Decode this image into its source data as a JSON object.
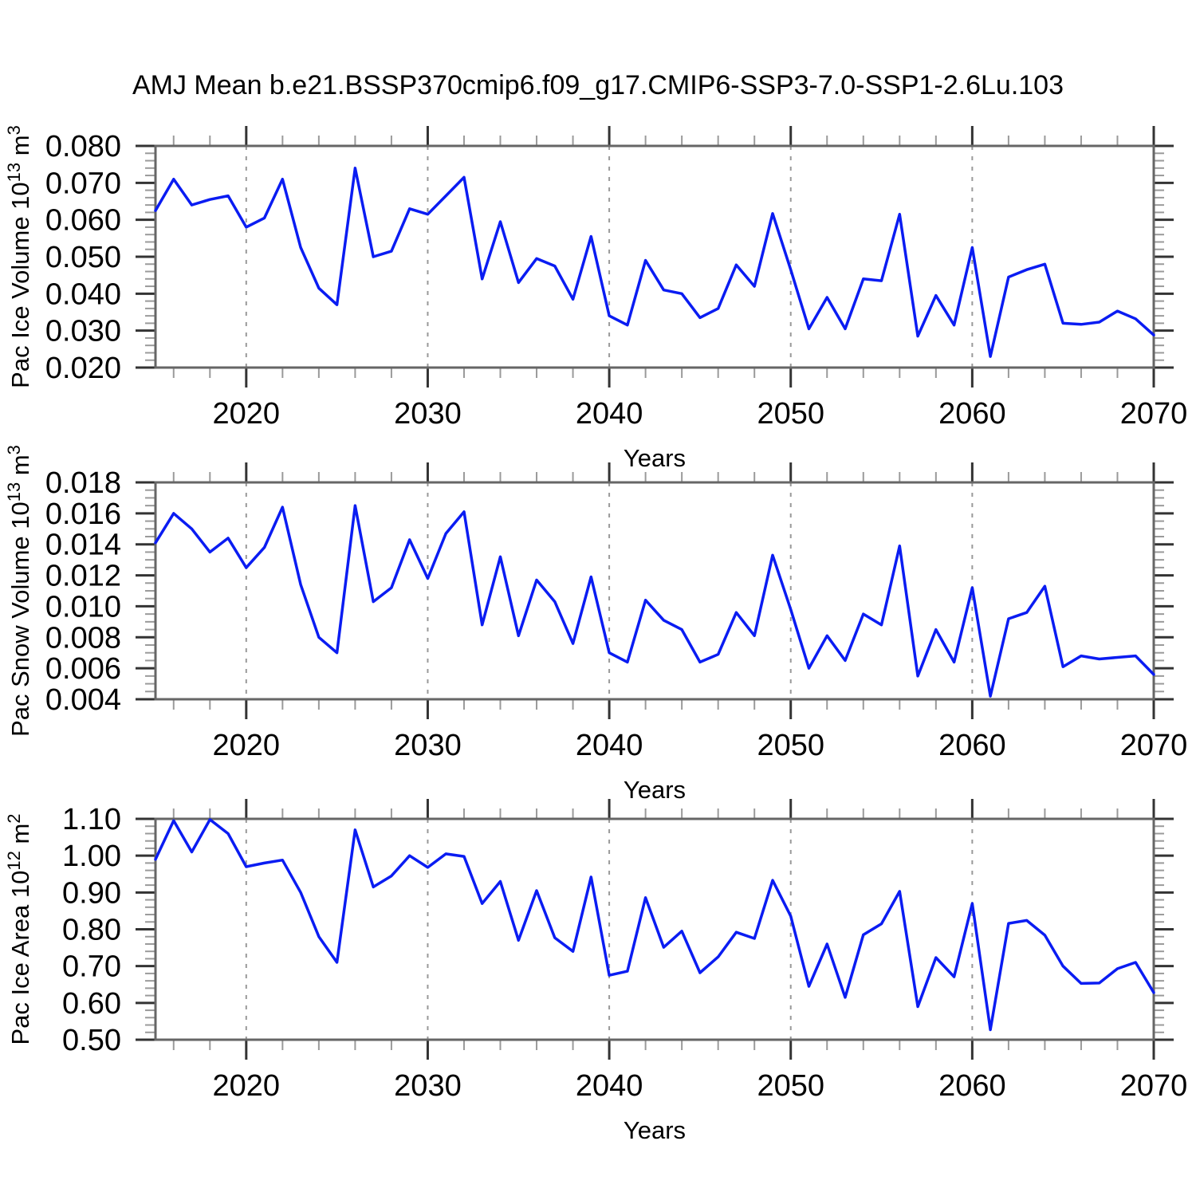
{
  "title": "AMJ Mean b.e21.BSSP370cmip6.f09_g17.CMIP6-SSP3-7.0-SSP1-2.6Lu.103",
  "colors": {
    "line": "#0a1cf2",
    "frame": "#666666",
    "major_tick": "#333333",
    "minor_tick": "#9a9a9a",
    "gridline": "#999999",
    "text": "#000000"
  },
  "x_axis": {
    "label": "Years",
    "start": 2015,
    "end": 2070,
    "major_ticks": [
      2020,
      2030,
      2040,
      2050,
      2060,
      2070
    ],
    "minor_step": 2,
    "gridline_years": [
      2020,
      2030,
      2040,
      2050,
      2060
    ]
  },
  "chart_data": [
    {
      "type": "line",
      "name": "pac-ice-volume",
      "ylabel": "Pac Ice Volume 10^13 m^3",
      "ylabel_parts": [
        {
          "t": "Pac Ice Volume 10"
        },
        {
          "t": "13",
          "sup": true
        },
        {
          "t": " m"
        },
        {
          "t": "3",
          "sup": true
        }
      ],
      "xlabel": "Years",
      "ylim": [
        0.02,
        0.08
      ],
      "ytick_step": 0.01,
      "yminor_step": 0.002,
      "ytick_decimals": 3,
      "x_start": 2015,
      "x_step": 1,
      "values": [
        0.0625,
        0.071,
        0.064,
        0.0655,
        0.0665,
        0.058,
        0.0605,
        0.071,
        0.0525,
        0.0415,
        0.037,
        0.074,
        0.05,
        0.0515,
        0.063,
        0.0615,
        0.0665,
        0.0715,
        0.044,
        0.0595,
        0.043,
        0.0495,
        0.0475,
        0.0385,
        0.0555,
        0.034,
        0.0315,
        0.049,
        0.041,
        0.04,
        0.0335,
        0.036,
        0.0478,
        0.042,
        0.0617,
        0.0465,
        0.0305,
        0.039,
        0.0305,
        0.044,
        0.0435,
        0.0615,
        0.0285,
        0.0395,
        0.0315,
        0.0525,
        0.023,
        0.0445,
        0.0465,
        0.048,
        0.032,
        0.0317,
        0.0323,
        0.0353,
        0.0332,
        0.0288
      ]
    },
    {
      "type": "line",
      "name": "pac-snow-volume",
      "ylabel": "Pac Snow Volume 10^13 m^3",
      "ylabel_parts": [
        {
          "t": "Pac Snow Volume 10"
        },
        {
          "t": "13",
          "sup": true
        },
        {
          "t": " m"
        },
        {
          "t": "3",
          "sup": true
        }
      ],
      "xlabel": "Years",
      "ylim": [
        0.004,
        0.018
      ],
      "ytick_step": 0.002,
      "yminor_step": 0.0005,
      "ytick_decimals": 3,
      "x_start": 2015,
      "x_step": 1,
      "values": [
        0.0141,
        0.016,
        0.015,
        0.0135,
        0.0144,
        0.0125,
        0.0138,
        0.0164,
        0.0114,
        0.008,
        0.007,
        0.0165,
        0.0103,
        0.0112,
        0.0143,
        0.0118,
        0.0147,
        0.0161,
        0.0088,
        0.0132,
        0.0081,
        0.0117,
        0.0103,
        0.0076,
        0.0119,
        0.007,
        0.0064,
        0.0104,
        0.0091,
        0.0085,
        0.0064,
        0.0069,
        0.0096,
        0.0081,
        0.0133,
        0.0098,
        0.006,
        0.0081,
        0.0065,
        0.0095,
        0.0088,
        0.0139,
        0.0055,
        0.0085,
        0.0064,
        0.0112,
        0.0042,
        0.0092,
        0.0096,
        0.0113,
        0.0061,
        0.0068,
        0.0066,
        0.0067,
        0.0068,
        0.0056
      ]
    },
    {
      "type": "line",
      "name": "pac-ice-area",
      "ylabel": "Pac Ice Area 10^12 m^2",
      "ylabel_parts": [
        {
          "t": "Pac Ice Area 10"
        },
        {
          "t": "12",
          "sup": true
        },
        {
          "t": " m"
        },
        {
          "t": "2",
          "sup": true
        }
      ],
      "xlabel": "Years",
      "ylim": [
        0.5,
        1.1
      ],
      "ytick_step": 0.1,
      "yminor_step": 0.02,
      "ytick_decimals": 2,
      "x_start": 2015,
      "x_step": 1,
      "values": [
        0.99,
        1.095,
        1.01,
        1.098,
        1.06,
        0.97,
        0.98,
        0.988,
        0.9,
        0.78,
        0.71,
        1.07,
        0.915,
        0.945,
        1.0,
        0.968,
        1.005,
        0.998,
        0.87,
        0.93,
        0.77,
        0.905,
        0.777,
        0.74,
        0.942,
        0.675,
        0.686,
        0.886,
        0.751,
        0.795,
        0.682,
        0.725,
        0.792,
        0.775,
        0.933,
        0.836,
        0.645,
        0.76,
        0.615,
        0.785,
        0.815,
        0.903,
        0.59,
        0.723,
        0.671,
        0.87,
        0.527,
        0.816,
        0.824,
        0.784,
        0.7,
        0.653,
        0.654,
        0.693,
        0.71,
        0.628
      ]
    }
  ]
}
